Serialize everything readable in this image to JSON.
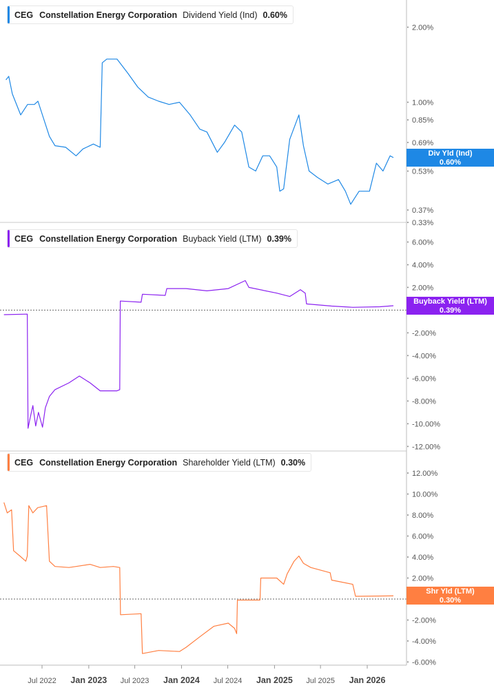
{
  "chart_data": [
    {
      "type": "line",
      "ticker": "CEG",
      "company": "Constellation Energy Corporation",
      "metric": "Dividend Yield (Ind)",
      "current_value": "0.60%",
      "badge_label": "Div Yld (Ind)",
      "badge_value": "0.60%",
      "color": "#1e88e5",
      "yscale": "log",
      "ylim": [
        0.33,
        2.57
      ],
      "yticks": [
        "2.00%",
        "1.00%",
        "0.85%",
        "0.69%",
        "0.53%",
        "0.37%",
        "0.33%"
      ],
      "ytick_values": [
        2.0,
        1.0,
        0.85,
        0.69,
        0.53,
        0.37,
        0.33
      ],
      "zero_line": false,
      "points": [
        [
          "2022-02-09",
          1.23
        ],
        [
          "2022-02-20",
          1.27
        ],
        [
          "2022-03-06",
          1.08
        ],
        [
          "2022-04-08",
          0.89
        ],
        [
          "2022-05-05",
          0.98
        ],
        [
          "2022-06-01",
          0.98
        ],
        [
          "2022-06-15",
          1.01
        ],
        [
          "2022-07-30",
          0.73
        ],
        [
          "2022-08-21",
          0.67
        ],
        [
          "2022-10-02",
          0.66
        ],
        [
          "2022-11-12",
          0.61
        ],
        [
          "2022-12-09",
          0.65
        ],
        [
          "2023-01-19",
          0.68
        ],
        [
          "2023-02-15",
          0.66
        ],
        [
          "2023-02-23",
          1.44
        ],
        [
          "2023-03-13",
          1.49
        ],
        [
          "2023-04-22",
          1.49
        ],
        [
          "2023-06-03",
          1.31
        ],
        [
          "2023-07-13",
          1.15
        ],
        [
          "2023-08-23",
          1.05
        ],
        [
          "2023-10-03",
          1.01
        ],
        [
          "2023-11-13",
          0.98
        ],
        [
          "2023-12-24",
          1.0
        ],
        [
          "2024-02-04",
          0.89
        ],
        [
          "2024-03-13",
          0.78
        ],
        [
          "2024-04-10",
          0.76
        ],
        [
          "2024-05-21",
          0.63
        ],
        [
          "2024-06-18",
          0.69
        ],
        [
          "2024-07-28",
          0.81
        ],
        [
          "2024-08-25",
          0.76
        ],
        [
          "2024-09-22",
          0.55
        ],
        [
          "2024-10-19",
          0.53
        ],
        [
          "2024-11-16",
          0.61
        ],
        [
          "2024-12-13",
          0.61
        ],
        [
          "2025-01-10",
          0.55
        ],
        [
          "2025-01-22",
          0.44
        ],
        [
          "2025-02-06",
          0.45
        ],
        [
          "2025-03-02",
          0.71
        ],
        [
          "2025-04-07",
          0.89
        ],
        [
          "2025-04-25",
          0.67
        ],
        [
          "2025-05-17",
          0.53
        ],
        [
          "2025-06-19",
          0.5
        ],
        [
          "2025-07-30",
          0.47
        ],
        [
          "2025-09-10",
          0.49
        ],
        [
          "2025-10-07",
          0.44
        ],
        [
          "2025-10-28",
          0.39
        ],
        [
          "2025-11-30",
          0.44
        ],
        [
          "2026-01-10",
          0.44
        ],
        [
          "2026-02-06",
          0.57
        ],
        [
          "2026-03-04",
          0.53
        ],
        [
          "2026-04-01",
          0.61
        ],
        [
          "2026-04-14",
          0.6
        ]
      ]
    },
    {
      "type": "line",
      "ticker": "CEG",
      "company": "Constellation Energy Corporation",
      "metric": "Buyback Yield (LTM)",
      "current_value": "0.39%",
      "badge_label": "Buyback Yield (LTM)",
      "badge_value": "0.39%",
      "color": "#8b22f0",
      "yscale": "linear",
      "ylim": [
        -12.4,
        7.3
      ],
      "yticks": [
        "6.00%",
        "4.00%",
        "2.00%",
        "0.00%",
        "-2.00%",
        "-4.00%",
        "-6.00%",
        "-8.00%",
        "-10.00%",
        "-12.00%"
      ],
      "ytick_values": [
        6,
        4,
        2,
        0,
        -2,
        -4,
        -6,
        -8,
        -10,
        -12
      ],
      "zero_line": true,
      "points": [
        [
          "2022-02-01",
          -0.4
        ],
        [
          "2022-05-04",
          -0.35
        ],
        [
          "2022-05-07",
          -10.4
        ],
        [
          "2022-05-15",
          -9.5
        ],
        [
          "2022-05-26",
          -8.4
        ],
        [
          "2022-06-06",
          -10.2
        ],
        [
          "2022-06-17",
          -9.0
        ],
        [
          "2022-07-03",
          -10.3
        ],
        [
          "2022-07-14",
          -8.6
        ],
        [
          "2022-07-30",
          -7.6
        ],
        [
          "2022-08-21",
          -7.0
        ],
        [
          "2022-10-15",
          -6.4
        ],
        [
          "2022-11-25",
          -5.8
        ],
        [
          "2023-01-06",
          -6.4
        ],
        [
          "2023-02-15",
          -7.1
        ],
        [
          "2023-04-22",
          -7.1
        ],
        [
          "2023-05-03",
          -7.0
        ],
        [
          "2023-05-05",
          0.8
        ],
        [
          "2023-07-26",
          0.7
        ],
        [
          "2023-07-31",
          1.4
        ],
        [
          "2023-10-29",
          1.3
        ],
        [
          "2023-11-04",
          1.9
        ],
        [
          "2024-01-19",
          1.9
        ],
        [
          "2024-04-10",
          1.7
        ],
        [
          "2024-07-03",
          1.9
        ],
        [
          "2024-09-08",
          2.6
        ],
        [
          "2024-09-22",
          2.0
        ],
        [
          "2025-01-10",
          1.5
        ],
        [
          "2025-03-02",
          1.2
        ],
        [
          "2025-04-13",
          1.8
        ],
        [
          "2025-05-02",
          1.5
        ],
        [
          "2025-05-07",
          0.55
        ],
        [
          "2025-08-14",
          0.36
        ],
        [
          "2025-11-05",
          0.25
        ],
        [
          "2026-02-20",
          0.3
        ],
        [
          "2026-04-14",
          0.39
        ]
      ]
    },
    {
      "type": "line",
      "ticker": "CEG",
      "company": "Constellation Energy Corporation",
      "metric": "Shareholder Yield (LTM)",
      "current_value": "0.30%",
      "badge_label": "Shr Yld (LTM)",
      "badge_value": "0.30%",
      "color": "#ff7f41",
      "yscale": "linear",
      "ylim": [
        -6.3,
        14.1
      ],
      "yticks": [
        "12.00%",
        "10.00%",
        "8.00%",
        "6.00%",
        "4.00%",
        "2.00%",
        "0.00%",
        "-2.00%",
        "-4.00%",
        "-6.00%"
      ],
      "ytick_values": [
        12,
        10,
        8,
        6,
        4,
        2,
        0,
        -2,
        -4,
        -6
      ],
      "zero_line": true,
      "points": [
        [
          "2022-02-01",
          9.2
        ],
        [
          "2022-02-14",
          8.2
        ],
        [
          "2022-03-03",
          8.5
        ],
        [
          "2022-03-11",
          4.6
        ],
        [
          "2022-04-05",
          4.1
        ],
        [
          "2022-04-28",
          3.6
        ],
        [
          "2022-05-04",
          4.1
        ],
        [
          "2022-05-10",
          8.9
        ],
        [
          "2022-05-26",
          8.2
        ],
        [
          "2022-06-14",
          8.7
        ],
        [
          "2022-07-19",
          8.9
        ],
        [
          "2022-07-30",
          3.6
        ],
        [
          "2022-08-21",
          3.1
        ],
        [
          "2022-10-15",
          3.0
        ],
        [
          "2022-11-12",
          3.1
        ],
        [
          "2023-01-06",
          3.3
        ],
        [
          "2023-02-15",
          3.0
        ],
        [
          "2023-04-08",
          3.1
        ],
        [
          "2023-05-03",
          3.0
        ],
        [
          "2023-05-06",
          -1.5
        ],
        [
          "2023-07-26",
          -1.4
        ],
        [
          "2023-07-31",
          -5.2
        ],
        [
          "2023-10-03",
          -4.9
        ],
        [
          "2023-12-24",
          -5.0
        ],
        [
          "2024-01-19",
          -4.6
        ],
        [
          "2024-03-13",
          -3.6
        ],
        [
          "2024-05-07",
          -2.6
        ],
        [
          "2024-07-03",
          -2.3
        ],
        [
          "2024-07-28",
          -2.8
        ],
        [
          "2024-08-05",
          -3.3
        ],
        [
          "2024-08-08",
          -0.1
        ],
        [
          "2024-11-05",
          -0.1
        ],
        [
          "2024-11-08",
          2.0
        ],
        [
          "2025-01-10",
          2.0
        ],
        [
          "2025-02-06",
          1.4
        ],
        [
          "2025-02-20",
          2.4
        ],
        [
          "2025-03-19",
          3.6
        ],
        [
          "2025-04-07",
          4.1
        ],
        [
          "2025-04-25",
          3.4
        ],
        [
          "2025-05-24",
          3.0
        ],
        [
          "2025-08-08",
          2.5
        ],
        [
          "2025-08-14",
          1.8
        ],
        [
          "2025-11-05",
          1.4
        ],
        [
          "2025-11-16",
          0.26
        ],
        [
          "2026-04-14",
          0.3
        ]
      ]
    }
  ],
  "x_axis": {
    "ticks": [
      {
        "label": "Jul 2022",
        "date": "2022-07-01",
        "major": false
      },
      {
        "label": "Jan 2023",
        "date": "2023-01-01",
        "major": true
      },
      {
        "label": "Jul 2023",
        "date": "2023-07-01",
        "major": false
      },
      {
        "label": "Jan 2024",
        "date": "2024-01-01",
        "major": true
      },
      {
        "label": "Jul 2024",
        "date": "2024-07-01",
        "major": false
      },
      {
        "label": "Jan 2025",
        "date": "2025-01-01",
        "major": true
      },
      {
        "label": "Jul 2025",
        "date": "2025-07-01",
        "major": false
      },
      {
        "label": "Jan 2026",
        "date": "2026-01-01",
        "major": true
      }
    ]
  }
}
